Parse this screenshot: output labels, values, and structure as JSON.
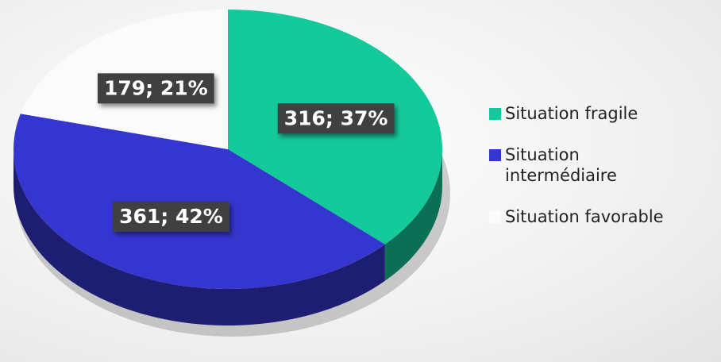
{
  "chart_data": {
    "type": "pie",
    "categories": [
      "Situation fragile",
      "Situation intermédiaire",
      "Situation favorable"
    ],
    "values": [
      316,
      361,
      179
    ],
    "value_labels": [
      "316; 37%",
      "361; 42%",
      "179; 21%"
    ],
    "colors": [
      "#14c99a",
      "#3535d0",
      "#fbfbfb"
    ],
    "legend": "right"
  }
}
